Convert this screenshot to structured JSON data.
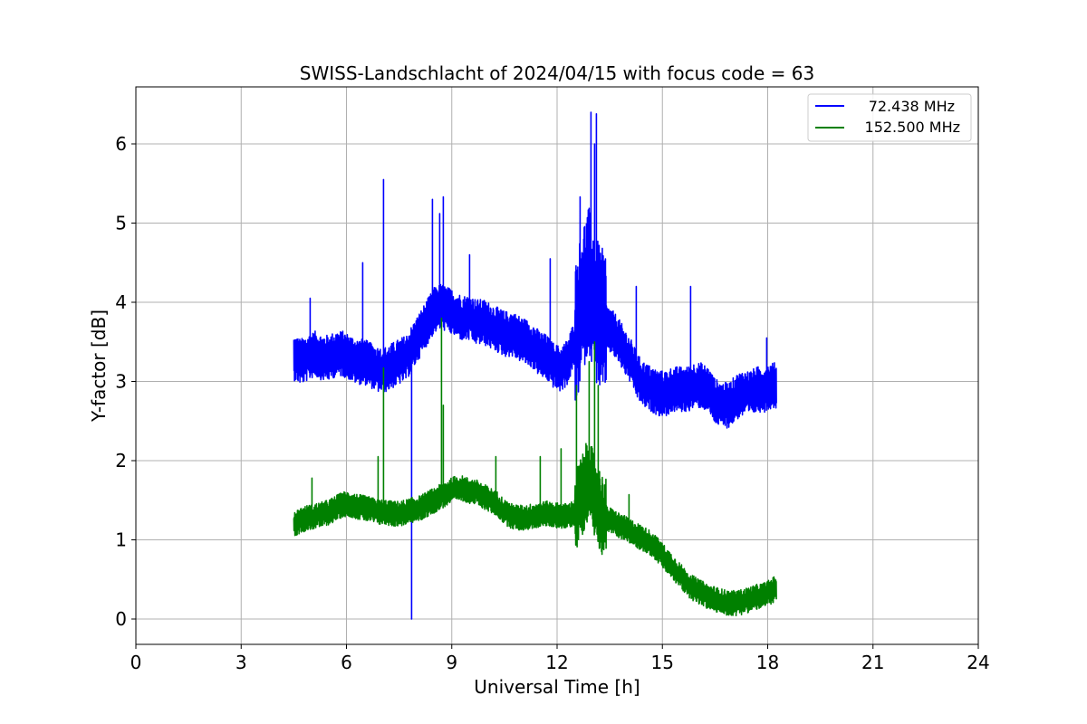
{
  "chart_data": {
    "type": "line",
    "title": "SWISS-Landschlacht of 2024/04/15 with focus code = 63",
    "xlabel": "Universal Time [h]",
    "ylabel": "Y-factor [dB]",
    "xlim": [
      0,
      24
    ],
    "ylim": [
      -0.32,
      6.72
    ],
    "xticks": [
      0,
      3,
      6,
      9,
      12,
      15,
      18,
      21,
      24
    ],
    "yticks": [
      0,
      1,
      2,
      3,
      4,
      5,
      6
    ],
    "grid": true,
    "legend_position": "top-right",
    "series": [
      {
        "name": "72.438 MHz",
        "color": "#0000ff",
        "x": [
          4.5,
          4.7,
          4.9,
          5.1,
          5.3,
          5.5,
          5.7,
          5.9,
          6.1,
          6.3,
          6.5,
          6.7,
          6.9,
          7.1,
          7.3,
          7.5,
          7.7,
          7.9,
          8.1,
          8.3,
          8.5,
          8.7,
          8.9,
          9.1,
          9.3,
          9.5,
          9.7,
          9.9,
          10.1,
          10.3,
          10.5,
          10.7,
          10.9,
          11.1,
          11.3,
          11.5,
          11.7,
          11.9,
          12.1,
          12.3,
          12.5,
          12.7,
          12.9,
          13.1,
          13.3,
          13.5,
          13.7,
          13.9,
          14.1,
          14.3,
          14.5,
          14.7,
          14.9,
          15.1,
          15.3,
          15.5,
          15.7,
          15.9,
          16.1,
          16.3,
          16.5,
          16.7,
          16.9,
          17.1,
          17.3,
          17.5,
          17.7,
          17.9,
          18.1,
          18.25
        ],
        "y": [
          3.3,
          3.25,
          3.3,
          3.35,
          3.3,
          3.3,
          3.35,
          3.35,
          3.3,
          3.25,
          3.25,
          3.2,
          3.15,
          3.15,
          3.2,
          3.25,
          3.3,
          3.45,
          3.6,
          3.75,
          3.9,
          3.95,
          3.9,
          3.85,
          3.8,
          3.8,
          3.75,
          3.75,
          3.7,
          3.65,
          3.6,
          3.6,
          3.55,
          3.5,
          3.45,
          3.35,
          3.3,
          3.2,
          3.15,
          3.25,
          3.5,
          4.0,
          4.3,
          3.9,
          3.75,
          3.65,
          3.55,
          3.4,
          3.25,
          3.05,
          2.95,
          2.9,
          2.85,
          2.85,
          2.9,
          2.9,
          2.9,
          2.95,
          2.95,
          2.9,
          2.75,
          2.7,
          2.7,
          2.8,
          2.85,
          2.85,
          2.9,
          2.9,
          2.95,
          2.95
        ],
        "noise": 0.18,
        "spikes": [
          {
            "x": 4.95,
            "y": 4.05
          },
          {
            "x": 6.45,
            "y": 4.5
          },
          {
            "x": 7.05,
            "y": 5.55
          },
          {
            "x": 7.85,
            "y": 0.0
          },
          {
            "x": 8.45,
            "y": 5.3
          },
          {
            "x": 8.65,
            "y": 5.12
          },
          {
            "x": 8.75,
            "y": 5.33
          },
          {
            "x": 9.5,
            "y": 4.6
          },
          {
            "x": 11.8,
            "y": 4.55
          },
          {
            "x": 12.65,
            "y": 5.33
          },
          {
            "x": 12.95,
            "y": 6.4
          },
          {
            "x": 13.1,
            "y": 6.38
          },
          {
            "x": 13.05,
            "y": 6.0
          },
          {
            "x": 14.25,
            "y": 4.2
          },
          {
            "x": 15.8,
            "y": 4.2
          },
          {
            "x": 17.95,
            "y": 3.55
          }
        ]
      },
      {
        "name": "152.500 MHz",
        "color": "#008000",
        "x": [
          4.5,
          4.7,
          4.9,
          5.1,
          5.3,
          5.5,
          5.7,
          5.9,
          6.1,
          6.3,
          6.5,
          6.7,
          6.9,
          7.1,
          7.3,
          7.5,
          7.7,
          7.9,
          8.1,
          8.3,
          8.5,
          8.7,
          8.9,
          9.1,
          9.3,
          9.5,
          9.7,
          9.9,
          10.1,
          10.3,
          10.5,
          10.7,
          10.9,
          11.1,
          11.3,
          11.5,
          11.7,
          11.9,
          12.1,
          12.3,
          12.5,
          12.7,
          12.9,
          13.1,
          13.3,
          13.5,
          13.7,
          13.9,
          14.1,
          14.3,
          14.5,
          14.7,
          14.9,
          15.1,
          15.3,
          15.5,
          15.7,
          15.9,
          16.1,
          16.3,
          16.5,
          16.7,
          16.9,
          17.1,
          17.3,
          17.5,
          17.7,
          17.9,
          18.1,
          18.25
        ],
        "y": [
          1.2,
          1.25,
          1.28,
          1.3,
          1.32,
          1.35,
          1.4,
          1.45,
          1.45,
          1.42,
          1.4,
          1.38,
          1.35,
          1.35,
          1.33,
          1.33,
          1.35,
          1.38,
          1.4,
          1.45,
          1.5,
          1.55,
          1.6,
          1.65,
          1.65,
          1.62,
          1.6,
          1.55,
          1.5,
          1.45,
          1.35,
          1.3,
          1.28,
          1.28,
          1.3,
          1.32,
          1.33,
          1.32,
          1.3,
          1.3,
          1.35,
          1.55,
          1.8,
          1.5,
          1.3,
          1.25,
          1.2,
          1.15,
          1.1,
          1.05,
          1.0,
          0.95,
          0.85,
          0.75,
          0.65,
          0.55,
          0.45,
          0.38,
          0.33,
          0.28,
          0.25,
          0.22,
          0.2,
          0.2,
          0.22,
          0.25,
          0.28,
          0.3,
          0.35,
          0.4
        ],
        "noise": 0.1,
        "spikes": [
          {
            "x": 5.0,
            "y": 1.78
          },
          {
            "x": 6.9,
            "y": 2.05
          },
          {
            "x": 7.05,
            "y": 3.17
          },
          {
            "x": 8.7,
            "y": 3.8
          },
          {
            "x": 8.75,
            "y": 2.7
          },
          {
            "x": 10.25,
            "y": 2.05
          },
          {
            "x": 11.5,
            "y": 2.05
          },
          {
            "x": 12.1,
            "y": 2.15
          },
          {
            "x": 12.55,
            "y": 2.95
          },
          {
            "x": 12.9,
            "y": 3.25
          },
          {
            "x": 13.05,
            "y": 3.5
          },
          {
            "x": 13.15,
            "y": 2.95
          },
          {
            "x": 14.05,
            "y": 1.57
          }
        ]
      }
    ]
  }
}
